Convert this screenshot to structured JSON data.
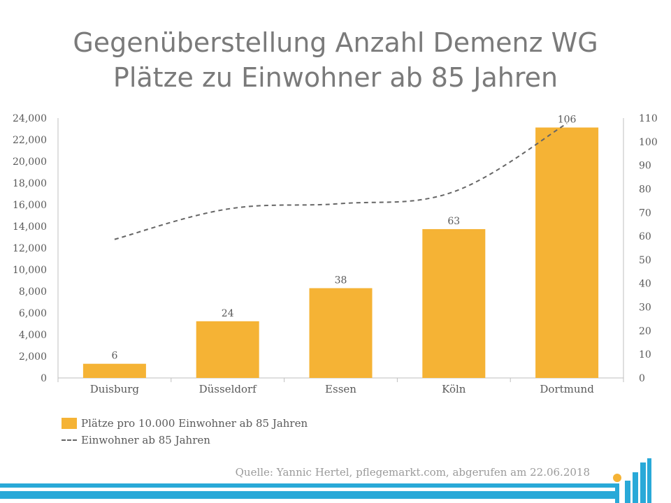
{
  "title_lines": [
    "Gegenüberstellung Anzahl Demenz WG",
    "Plätze zu Einwohner ab 85 Jahren"
  ],
  "colors": {
    "bar": "#f5b335",
    "line": "#666666",
    "axis": "#bfbfbf",
    "text": "#595959",
    "title": "#7a7a7a",
    "brand": "#29a9d8"
  },
  "chart_data": {
    "type": "bar",
    "categories": [
      "Duisburg",
      "Düsseldorf",
      "Essen",
      "Köln",
      "Dortmund"
    ],
    "series": [
      {
        "name": "Plätze pro 10.000 Einwohner ab 85 Jahren",
        "type": "bar",
        "axis": "right",
        "values": [
          6,
          24,
          38,
          63,
          106
        ]
      },
      {
        "name": "Einwohner ab 85 Jahren",
        "type": "line",
        "style": "dashed",
        "axis": "left",
        "values": [
          12800,
          15600,
          16100,
          17200,
          23500
        ]
      }
    ],
    "left_axis": {
      "ylim": [
        0,
        24000
      ],
      "ticks": [
        "0",
        "2,000",
        "4,000",
        "6,000",
        "8,000",
        "10,000",
        "12,000",
        "14,000",
        "16,000",
        "18,000",
        "20,000",
        "22,000",
        "24,000"
      ]
    },
    "right_axis": {
      "ylim": [
        0,
        110
      ],
      "ticks": [
        "0",
        "10",
        "20",
        "30",
        "40",
        "50",
        "60",
        "70",
        "80",
        "90",
        "100",
        "110"
      ]
    },
    "data_labels": [
      "6",
      "24",
      "38",
      "63",
      "106"
    ],
    "grid": false,
    "legend_position": "bottom-left"
  },
  "legend": {
    "bar_label": "Plätze pro 10.000 Einwohner ab 85 Jahren",
    "line_label": "Einwohner ab 85 Jahren"
  },
  "source": "Quelle: Yannic Hertel, pflegemarkt.com, abgerufen am 22.06.2018",
  "logo_icon": "pflegemarkt-logo-icon"
}
